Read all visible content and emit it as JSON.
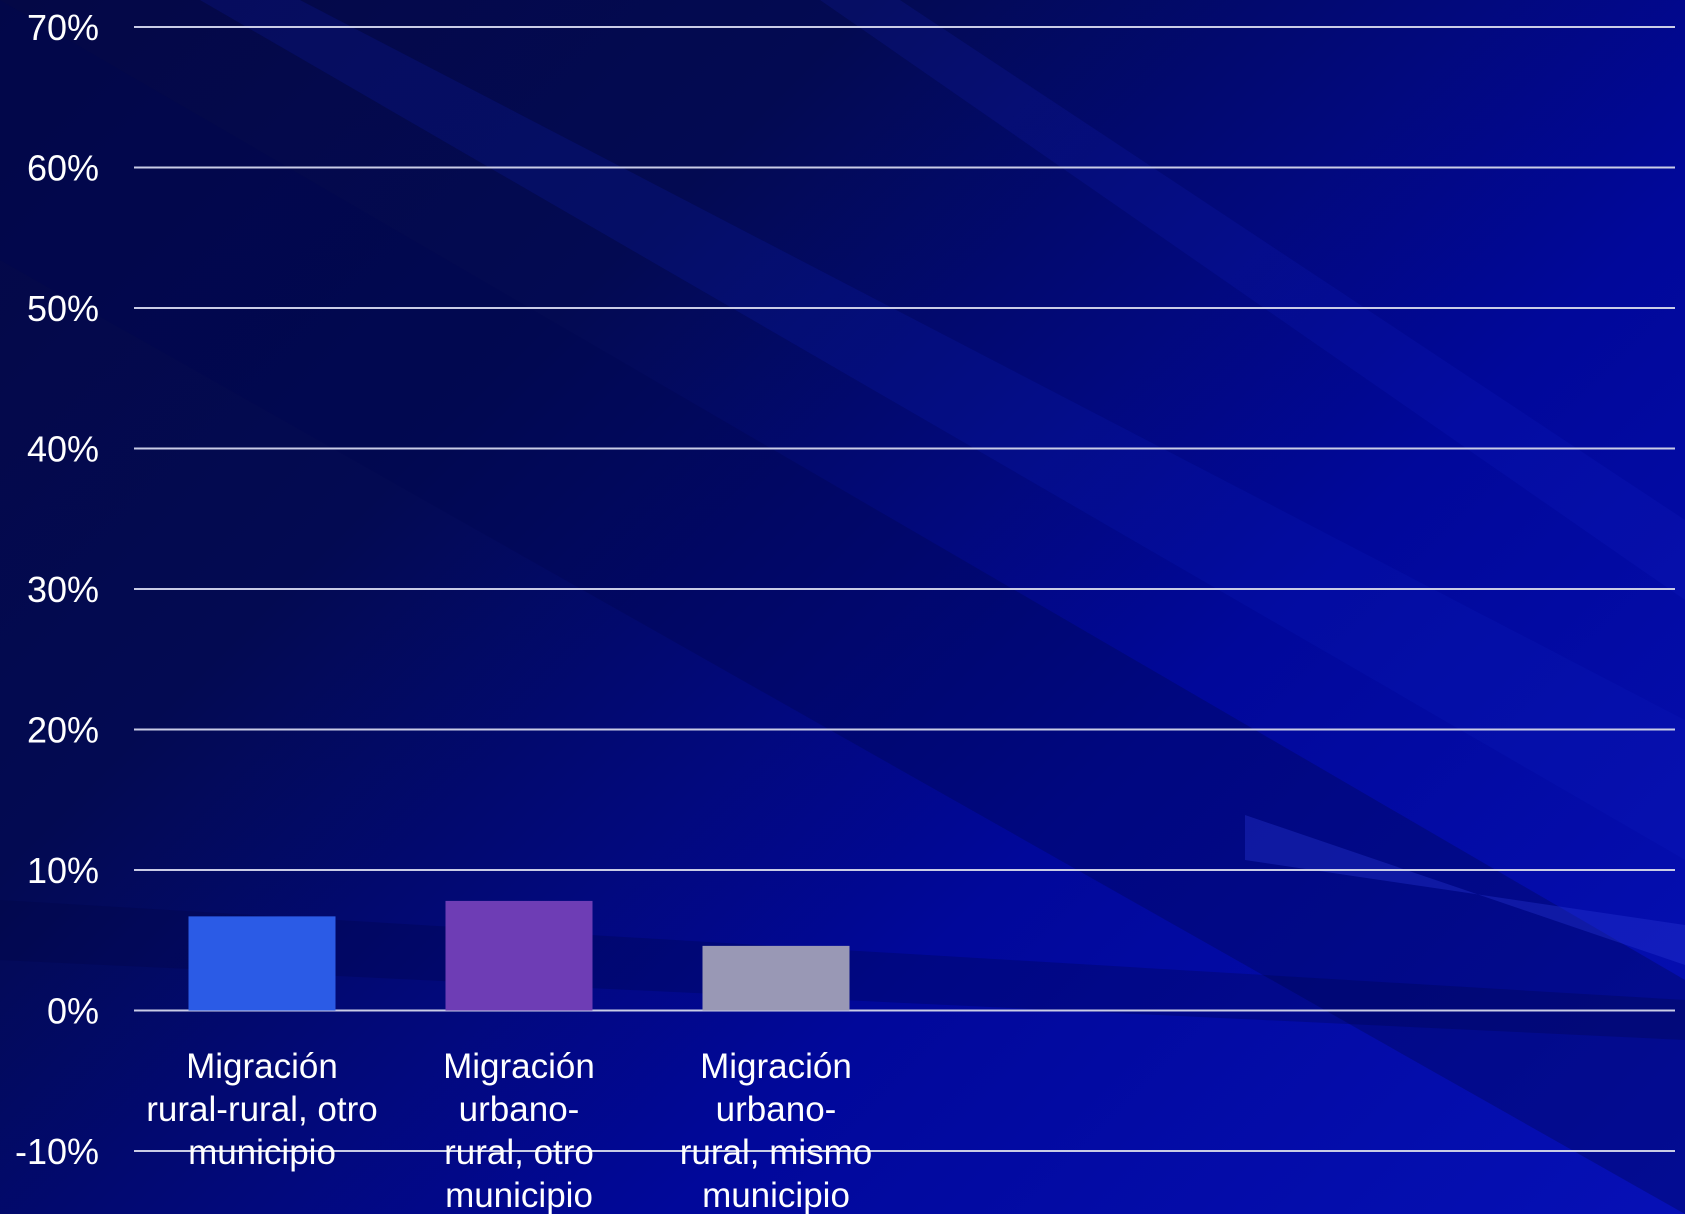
{
  "chart_data": {
    "type": "bar",
    "categories": [
      [
        "Migración",
        "rural-rural, otro",
        "municipio"
      ],
      [
        "Migración",
        "urbano-",
        "rural, otro",
        "municipio"
      ],
      [
        "Migración",
        "urbano-",
        "rural, mismo",
        "municipio"
      ]
    ],
    "values": [
      6.7,
      7.8,
      4.6
    ],
    "colors": [
      "#2b5be6",
      "#6e3db5",
      "#9998b5"
    ],
    "ylim": [
      -10,
      70
    ],
    "yticks": [
      "-10%",
      "0%",
      "10%",
      "20%",
      "30%",
      "40%",
      "50%",
      "60%",
      "70%"
    ],
    "ytick_values": [
      -10,
      0,
      10,
      20,
      30,
      40,
      50,
      60,
      70
    ],
    "grid": true,
    "title": "",
    "xlabel": "",
    "ylabel": ""
  }
}
